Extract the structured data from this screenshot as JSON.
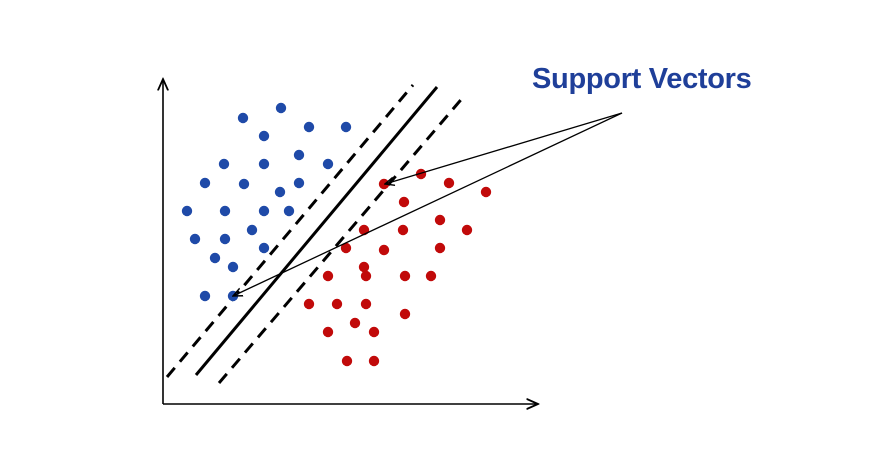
{
  "label": {
    "text": "Support Vectors",
    "color": "#1f3f99"
  },
  "colors": {
    "blue_class": "#1f4aa8",
    "red_class": "#c10a0a",
    "lines": "#000000"
  },
  "classes": [
    {
      "name": "",
      "color": "#1f4aa8"
    },
    {
      "name": "",
      "color": "#c10a0a"
    }
  ]
}
